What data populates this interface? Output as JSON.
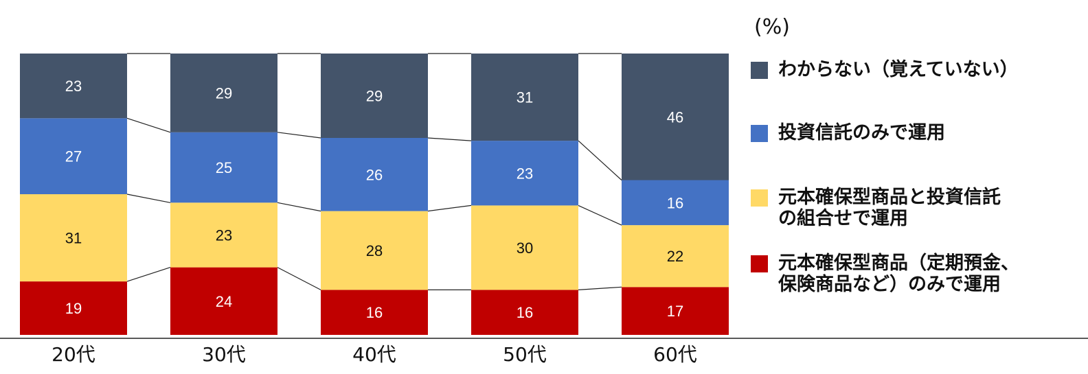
{
  "unit_label": "(%)",
  "colors": {
    "series_unknown": "#44546a",
    "series_trust_only": "#4472c4",
    "series_combo": "#ffd966",
    "series_principal_only": "#c00000",
    "connector": "#222222",
    "baseline": "#222222"
  },
  "chart_data": {
    "type": "bar",
    "stacked": true,
    "categories": [
      "20代",
      "30代",
      "40代",
      "50代",
      "60代"
    ],
    "series": [
      {
        "name": "元本確保型商品（定期預金、保険商品など）のみで運用",
        "color": "#c00000",
        "label_color": "#ffffff",
        "values": [
          19,
          24,
          16,
          16,
          17
        ]
      },
      {
        "name": "元本確保型商品と投資信託の組合せで運用",
        "color": "#ffd966",
        "label_color": "#111111",
        "values": [
          31,
          23,
          28,
          30,
          22
        ]
      },
      {
        "name": "投資信託のみで運用",
        "color": "#4472c4",
        "label_color": "#ffffff",
        "values": [
          27,
          25,
          26,
          23,
          16
        ]
      },
      {
        "name": "わからない（覚えていない）",
        "color": "#44546a",
        "label_color": "#ffffff",
        "values": [
          23,
          29,
          29,
          31,
          46
        ]
      }
    ],
    "ylim": [
      0,
      100
    ],
    "grid": false,
    "legend_position": "right"
  },
  "legend": [
    {
      "label_lines": [
        "わからない（覚えていない）"
      ],
      "color": "#44546a"
    },
    {
      "label_lines": [
        "投資信託のみで運用"
      ],
      "color": "#4472c4"
    },
    {
      "label_lines": [
        "元本確保型商品と投資信託",
        "の組合せで運用"
      ],
      "color": "#ffd966"
    },
    {
      "label_lines": [
        "元本確保型商品（定期預金、",
        "保険商品など）のみで運用"
      ],
      "color": "#c00000"
    }
  ]
}
